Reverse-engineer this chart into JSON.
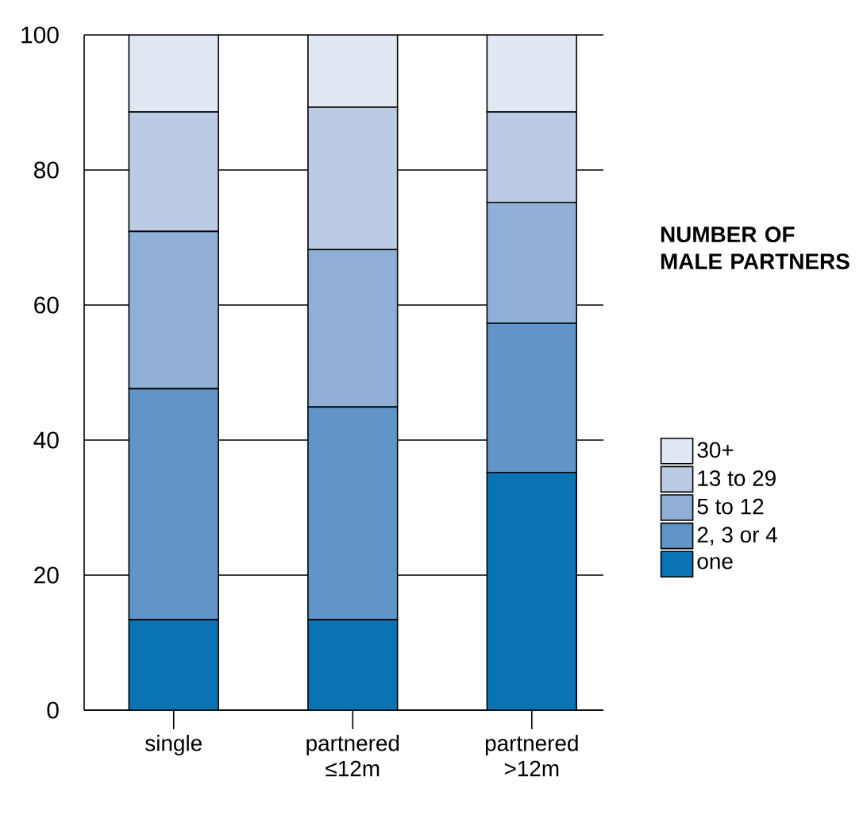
{
  "chart_data": {
    "type": "bar",
    "stacked": true,
    "legend_title": "NUMBER OF MALE PARTNERS",
    "categories": [
      "single",
      "partnered ≤12m",
      "partnered >12m"
    ],
    "series": [
      {
        "name": "one",
        "color": "#0a73b3",
        "values": [
          13.4,
          13.4,
          35.2
        ]
      },
      {
        "name": "2, 3 or 4",
        "color": "#6195c8",
        "values": [
          34.2,
          31.5,
          22.1
        ]
      },
      {
        "name": "5 to 12",
        "color": "#8fafd6",
        "values": [
          23.3,
          23.3,
          17.9
        ]
      },
      {
        "name": "13 to 29",
        "color": "#bccbe4",
        "values": [
          17.7,
          21.1,
          13.4
        ]
      },
      {
        "name": "30+",
        "color": "#e1e8f3",
        "values": [
          11.4,
          10.7,
          11.4
        ]
      }
    ],
    "ylim": [
      0,
      100
    ],
    "yticks": [
      0,
      20,
      40,
      60,
      80,
      100
    ],
    "grid": "y",
    "legend": "right"
  }
}
